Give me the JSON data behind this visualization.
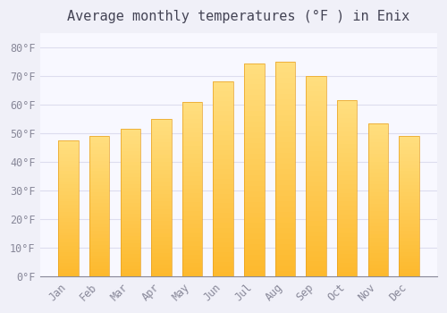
{
  "title": "Average monthly temperatures (°F ) in Enix",
  "months": [
    "Jan",
    "Feb",
    "Mar",
    "Apr",
    "May",
    "Jun",
    "Jul",
    "Aug",
    "Sep",
    "Oct",
    "Nov",
    "Dec"
  ],
  "values": [
    47.5,
    49.0,
    51.5,
    55.0,
    61.0,
    68.0,
    74.5,
    75.0,
    70.0,
    61.5,
    53.5,
    49.0
  ],
  "bar_color_main": "#FDB92E",
  "bar_color_gradient_top": "#FFDF80",
  "bar_edge_color": "#E8A020",
  "background_color": "#F0F0F8",
  "plot_bg_color": "#F8F8FF",
  "grid_color": "#DDDDEE",
  "text_color": "#888899",
  "title_color": "#444455",
  "ylim": [
    0,
    85
  ],
  "yticks": [
    0,
    10,
    20,
    30,
    40,
    50,
    60,
    70,
    80
  ],
  "ytick_labels": [
    "0°F",
    "10°F",
    "20°F",
    "30°F",
    "40°F",
    "50°F",
    "60°F",
    "70°F",
    "80°F"
  ],
  "title_fontsize": 11,
  "tick_fontsize": 8.5
}
